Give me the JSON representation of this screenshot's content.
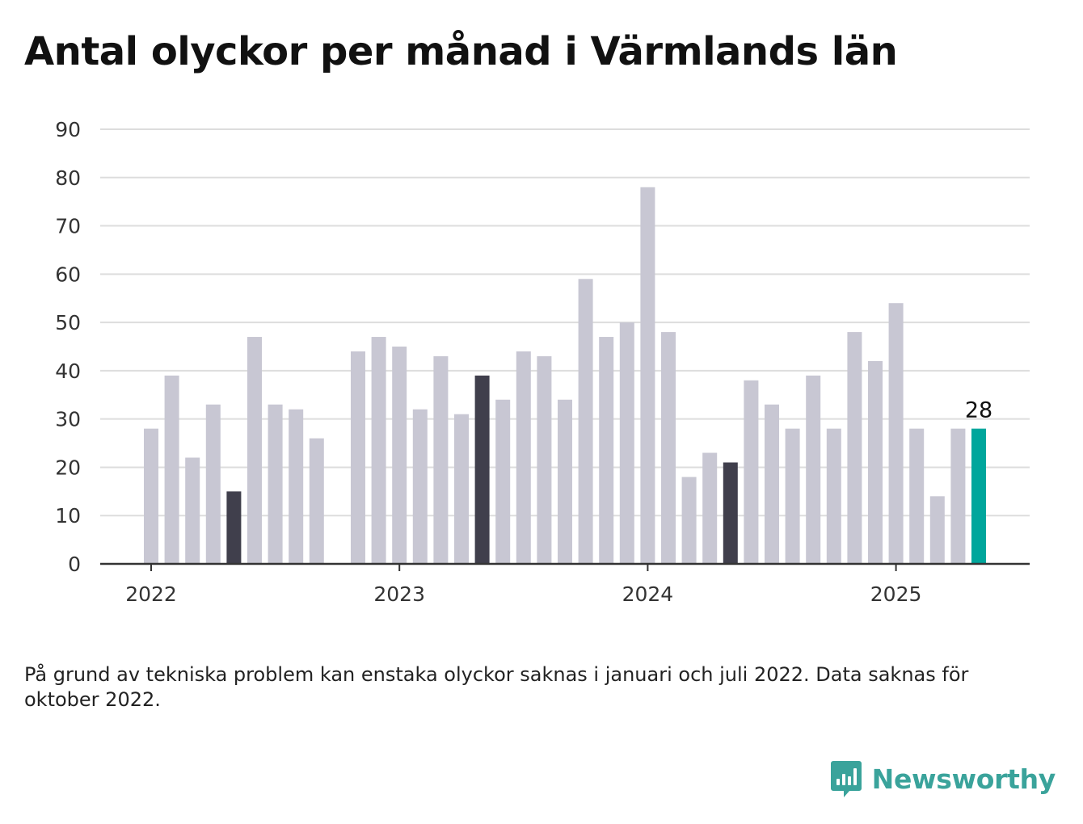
{
  "title": "Antal olyckor per månad i Värmlands län",
  "footnote": "På grund av tekniska problem kan enstaka olyckor saknas i januari och juli 2022. Data saknas för oktober 2022.",
  "brand": {
    "name": "Newsworthy",
    "icon": "newsworthy-logo-icon",
    "color": "#3aa39b"
  },
  "chart_data": {
    "type": "bar",
    "title": "Antal olyckor per månad i Värmlands län",
    "ylim": [
      0,
      90
    ],
    "yticks": [
      0,
      10,
      20,
      30,
      40,
      50,
      60,
      70,
      80,
      90
    ],
    "xticks": [
      {
        "label": "2022",
        "month": "2022-01"
      },
      {
        "label": "2023",
        "month": "2023-01"
      },
      {
        "label": "2024",
        "month": "2024-01"
      },
      {
        "label": "2025",
        "month": "2025-01"
      }
    ],
    "grid": true,
    "colors": {
      "default": "#c8c7d3",
      "highlight": "#403f4c",
      "latest": "#00a69c"
    },
    "categories": [
      "2022-01",
      "2022-02",
      "2022-03",
      "2022-04",
      "2022-05",
      "2022-06",
      "2022-07",
      "2022-08",
      "2022-09",
      "2022-10",
      "2022-11",
      "2022-12",
      "2023-01",
      "2023-02",
      "2023-03",
      "2023-04",
      "2023-05",
      "2023-06",
      "2023-07",
      "2023-08",
      "2023-09",
      "2023-10",
      "2023-11",
      "2023-12",
      "2024-01",
      "2024-02",
      "2024-03",
      "2024-04",
      "2024-05",
      "2024-06",
      "2024-07",
      "2024-08",
      "2024-09",
      "2024-10",
      "2024-11",
      "2024-12",
      "2025-01",
      "2025-02",
      "2025-03",
      "2025-04",
      "2025-05"
    ],
    "values": [
      28,
      39,
      22,
      33,
      15,
      47,
      33,
      32,
      26,
      null,
      44,
      47,
      45,
      32,
      43,
      31,
      39,
      34,
      44,
      43,
      34,
      59,
      47,
      50,
      78,
      48,
      18,
      23,
      21,
      38,
      33,
      28,
      39,
      28,
      48,
      42,
      54,
      28,
      14,
      28,
      28
    ],
    "highlighted": [
      "2022-05",
      "2023-05",
      "2024-05"
    ],
    "latest": "2025-05",
    "annotations": [
      {
        "month": "2025-05",
        "label": "28"
      }
    ]
  }
}
